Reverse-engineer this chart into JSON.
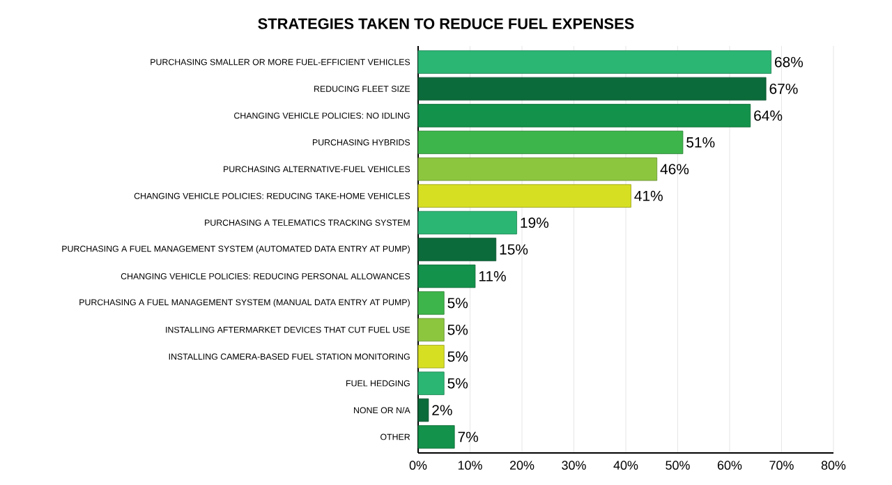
{
  "chart_data": {
    "type": "bar",
    "orientation": "horizontal",
    "title": "STRATEGIES TAKEN TO REDUCE FUEL EXPENSES",
    "categories": [
      "PURCHASING SMALLER OR MORE FUEL-EFFICIENT VEHICLES",
      "REDUCING FLEET SIZE",
      "CHANGING VEHICLE POLICIES: NO IDLING",
      "PURCHASING HYBRIDS",
      "PURCHASING ALTERNATIVE-FUEL VEHICLES",
      "CHANGING VEHICLE POLICIES: REDUCING TAKE-HOME VEHICLES",
      "PURCHASING A TELEMATICS TRACKING SYSTEM",
      "PURCHASING A FUEL MANAGEMENT SYSTEM (AUTOMATED DATA ENTRY AT PUMP)",
      "CHANGING VEHICLE POLICIES: REDUCING PERSONAL ALLOWANCES",
      "PURCHASING A FUEL MANAGEMENT SYSTEM (MANUAL DATA ENTRY AT PUMP)",
      "INSTALLING AFTERMARKET DEVICES THAT CUT FUEL USE",
      "INSTALLING CAMERA-BASED FUEL STATION MONITORING",
      "FUEL HEDGING",
      "NONE OR N/A",
      "OTHER"
    ],
    "values": [
      68,
      67,
      64,
      51,
      46,
      41,
      19,
      15,
      11,
      5,
      5,
      5,
      5,
      2,
      7
    ],
    "value_labels": [
      "68%",
      "67%",
      "64%",
      "51%",
      "46%",
      "41%",
      "19%",
      "15%",
      "11%",
      "5%",
      "5%",
      "5%",
      "5%",
      "2%",
      "7%"
    ],
    "colors": [
      "#2bb673",
      "#0b6b3a",
      "#12924a",
      "#3db54a",
      "#8cc63f",
      "#d7df23",
      "#2bb673",
      "#0b6b3a",
      "#12924a",
      "#3db54a",
      "#8cc63f",
      "#d7df23",
      "#2bb673",
      "#0b6b3a",
      "#12924a"
    ],
    "xlim": [
      0,
      80
    ],
    "xticks": [
      {
        "value": 0,
        "label": "0%"
      },
      {
        "value": 10,
        "label": "10%"
      },
      {
        "value": 20,
        "label": "20%"
      },
      {
        "value": 30,
        "label": "30%"
      },
      {
        "value": 40,
        "label": "40%"
      },
      {
        "value": 50,
        "label": "50%"
      },
      {
        "value": 60,
        "label": "60%"
      },
      {
        "value": 70,
        "label": "70%"
      },
      {
        "value": 80,
        "label": "80%"
      }
    ],
    "grid": "x"
  }
}
